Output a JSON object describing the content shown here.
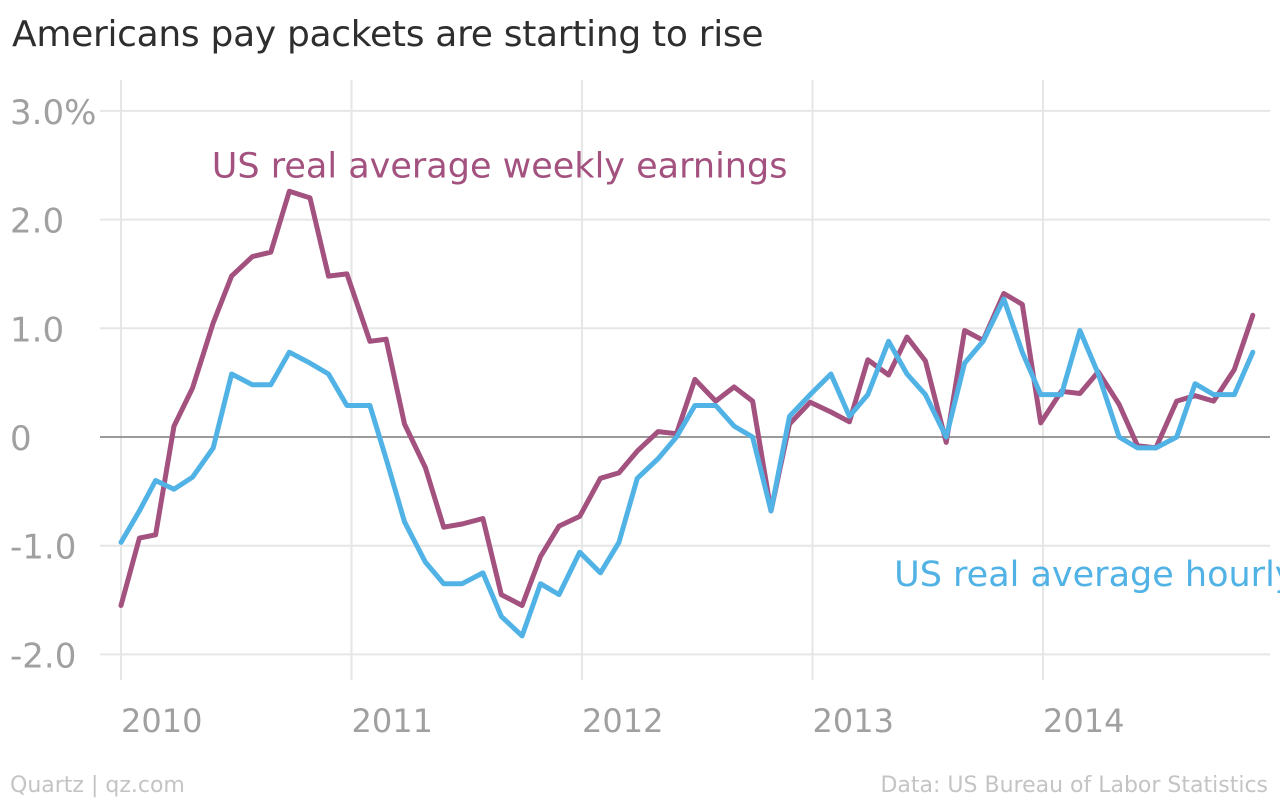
{
  "title": "Americans pay packets are starting to rise",
  "footer": {
    "credit": "Quartz | qz.com",
    "source": "Data: US Bureau of Labor Statistics"
  },
  "colors": {
    "weekly": "#a3517f",
    "hourly": "#51b2e5",
    "grid": "#e6e6e6",
    "zero_line": "#9a9a9a",
    "axis_text": "#a0a0a0"
  },
  "chart_data": {
    "type": "line",
    "title": "Americans pay packets are starting to rise",
    "x_unit": "year (decimal)",
    "xlim": [
      2009.92,
      2014.99
    ],
    "ylim": [
      -2.3,
      3.15
    ],
    "x_ticks": [
      {
        "value": 2010,
        "label": "2010"
      },
      {
        "value": 2011,
        "label": "2011"
      },
      {
        "value": 2012,
        "label": "2012"
      },
      {
        "value": 2013,
        "label": "2013"
      },
      {
        "value": 2014,
        "label": "2014"
      }
    ],
    "y_ticks": [
      {
        "value": 3.0,
        "label": "3.0%"
      },
      {
        "value": 2.0,
        "label": "2.0"
      },
      {
        "value": 1.0,
        "label": "1.0"
      },
      {
        "value": 0,
        "label": "0"
      },
      {
        "value": -1.0,
        "label": "-1.0"
      },
      {
        "value": -2.0,
        "label": "-2.0"
      }
    ],
    "grid": true,
    "legend": "direct labels on the plot",
    "series": [
      {
        "name": "US real average weekly earnings",
        "label_at": {
          "x": 2010.42,
          "y": 2.5
        },
        "color": "#a3517f",
        "points": [
          [
            2010.0,
            -1.55
          ],
          [
            2010.08,
            -0.93
          ],
          [
            2010.15,
            -0.9
          ],
          [
            2010.23,
            0.1
          ],
          [
            2010.31,
            0.45
          ],
          [
            2010.4,
            1.05
          ],
          [
            2010.48,
            1.48
          ],
          [
            2010.57,
            1.66
          ],
          [
            2010.65,
            1.7
          ],
          [
            2010.73,
            2.26
          ],
          [
            2010.82,
            2.2
          ],
          [
            2010.9,
            1.48
          ],
          [
            2010.98,
            1.5
          ],
          [
            2011.08,
            0.88
          ],
          [
            2011.15,
            0.9
          ],
          [
            2011.23,
            0.12
          ],
          [
            2011.32,
            -0.28
          ],
          [
            2011.4,
            -0.83
          ],
          [
            2011.48,
            -0.8
          ],
          [
            2011.57,
            -0.75
          ],
          [
            2011.65,
            -1.45
          ],
          [
            2011.74,
            -1.55
          ],
          [
            2011.82,
            -1.1
          ],
          [
            2011.9,
            -0.82
          ],
          [
            2011.99,
            -0.73
          ],
          [
            2012.08,
            -0.38
          ],
          [
            2012.16,
            -0.33
          ],
          [
            2012.24,
            -0.13
          ],
          [
            2012.33,
            0.05
          ],
          [
            2012.41,
            0.03
          ],
          [
            2012.49,
            0.53
          ],
          [
            2012.58,
            0.33
          ],
          [
            2012.66,
            0.46
          ],
          [
            2012.74,
            0.33
          ],
          [
            2012.82,
            -0.68
          ],
          [
            2012.9,
            0.12
          ],
          [
            2012.99,
            0.32
          ],
          [
            2013.08,
            0.23
          ],
          [
            2013.16,
            0.14
          ],
          [
            2013.24,
            0.71
          ],
          [
            2013.33,
            0.57
          ],
          [
            2013.41,
            0.92
          ],
          [
            2013.49,
            0.7
          ],
          [
            2013.58,
            -0.05
          ],
          [
            2013.66,
            0.98
          ],
          [
            2013.74,
            0.89
          ],
          [
            2013.83,
            1.32
          ],
          [
            2013.91,
            1.22
          ],
          [
            2013.99,
            0.13
          ],
          [
            2014.08,
            0.42
          ],
          [
            2014.16,
            0.4
          ],
          [
            2014.24,
            0.6
          ],
          [
            2014.33,
            0.3
          ],
          [
            2014.41,
            -0.08
          ],
          [
            2014.49,
            -0.1
          ],
          [
            2014.58,
            0.33
          ],
          [
            2014.66,
            0.38
          ],
          [
            2014.74,
            0.33
          ],
          [
            2014.83,
            0.62
          ],
          [
            2014.91,
            1.12
          ]
        ]
      },
      {
        "name": "US real average hourly earnings",
        "label_at": {
          "x": 2013.38,
          "y": -1.26
        },
        "color": "#51b2e5",
        "points": [
          [
            2010.0,
            -0.97
          ],
          [
            2010.08,
            -0.68
          ],
          [
            2010.15,
            -0.4
          ],
          [
            2010.23,
            -0.48
          ],
          [
            2010.31,
            -0.37
          ],
          [
            2010.4,
            -0.1
          ],
          [
            2010.48,
            0.58
          ],
          [
            2010.57,
            0.48
          ],
          [
            2010.65,
            0.48
          ],
          [
            2010.73,
            0.78
          ],
          [
            2010.82,
            0.68
          ],
          [
            2010.9,
            0.58
          ],
          [
            2010.98,
            0.29
          ],
          [
            2011.08,
            0.29
          ],
          [
            2011.15,
            -0.2
          ],
          [
            2011.23,
            -0.78
          ],
          [
            2011.32,
            -1.15
          ],
          [
            2011.4,
            -1.35
          ],
          [
            2011.48,
            -1.35
          ],
          [
            2011.57,
            -1.25
          ],
          [
            2011.65,
            -1.65
          ],
          [
            2011.74,
            -1.83
          ],
          [
            2011.82,
            -1.35
          ],
          [
            2011.9,
            -1.45
          ],
          [
            2011.99,
            -1.06
          ],
          [
            2012.08,
            -1.25
          ],
          [
            2012.16,
            -0.97
          ],
          [
            2012.24,
            -0.38
          ],
          [
            2012.33,
            -0.2
          ],
          [
            2012.41,
            0.0
          ],
          [
            2012.49,
            0.29
          ],
          [
            2012.58,
            0.29
          ],
          [
            2012.66,
            0.1
          ],
          [
            2012.74,
            0.0
          ],
          [
            2012.82,
            -0.68
          ],
          [
            2012.9,
            0.19
          ],
          [
            2012.99,
            0.39
          ],
          [
            2013.08,
            0.58
          ],
          [
            2013.16,
            0.19
          ],
          [
            2013.24,
            0.39
          ],
          [
            2013.33,
            0.88
          ],
          [
            2013.41,
            0.58
          ],
          [
            2013.49,
            0.39
          ],
          [
            2013.58,
            0.0
          ],
          [
            2013.66,
            0.68
          ],
          [
            2013.74,
            0.88
          ],
          [
            2013.83,
            1.27
          ],
          [
            2013.91,
            0.78
          ],
          [
            2013.99,
            0.39
          ],
          [
            2014.08,
            0.39
          ],
          [
            2014.16,
            0.98
          ],
          [
            2014.24,
            0.58
          ],
          [
            2014.33,
            0.0
          ],
          [
            2014.41,
            -0.1
          ],
          [
            2014.49,
            -0.1
          ],
          [
            2014.58,
            0.0
          ],
          [
            2014.66,
            0.49
          ],
          [
            2014.74,
            0.39
          ],
          [
            2014.83,
            0.39
          ],
          [
            2014.91,
            0.78
          ]
        ]
      }
    ]
  }
}
